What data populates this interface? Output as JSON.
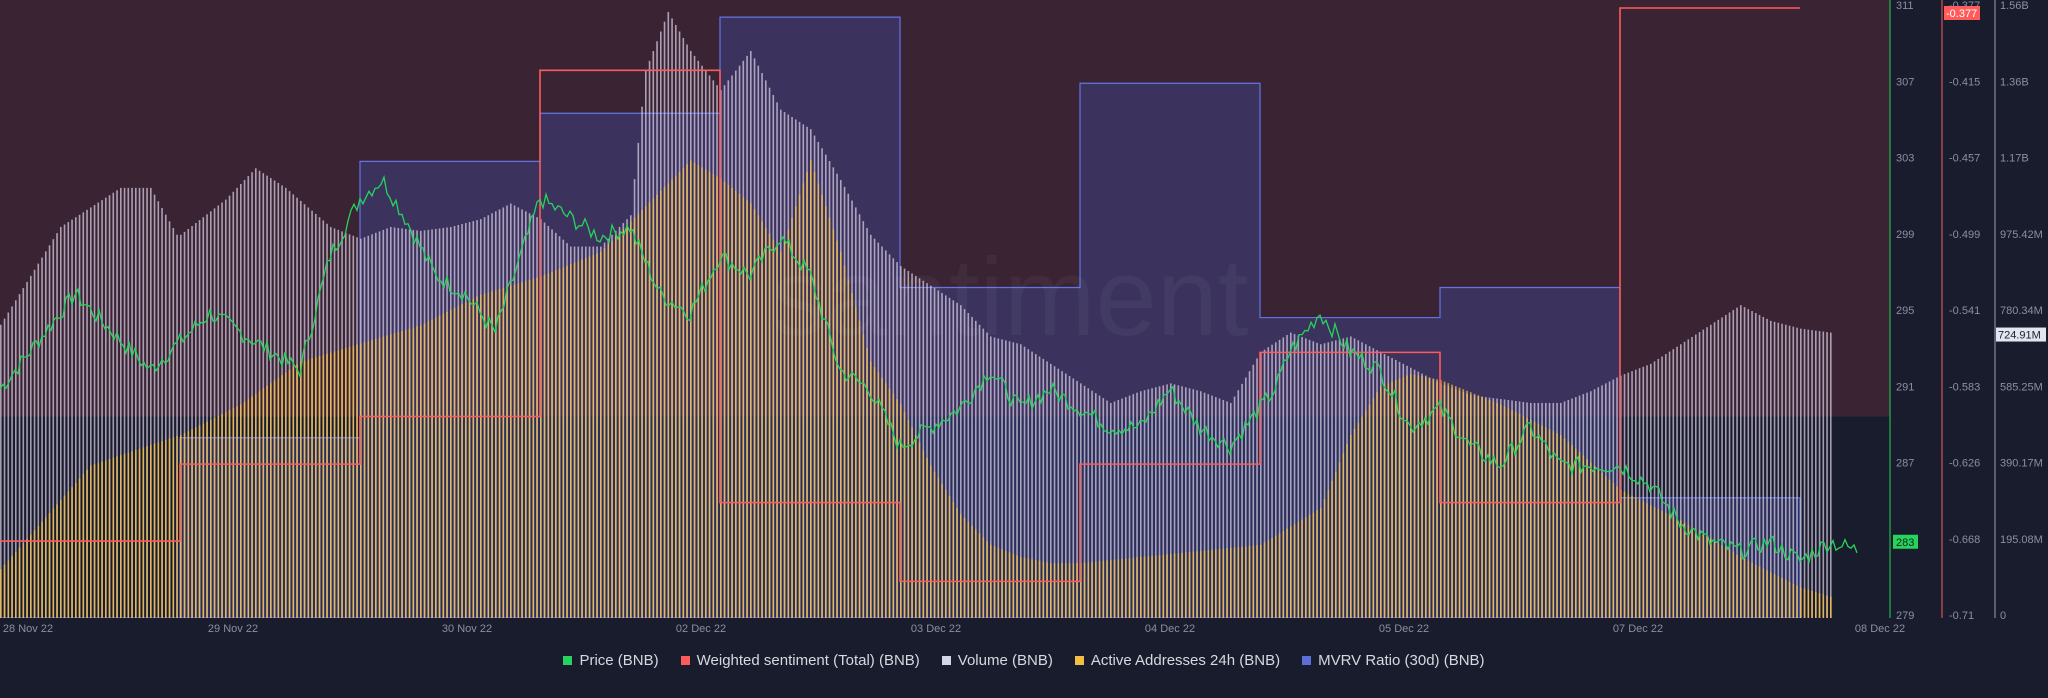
{
  "chart_data": {
    "type": "area",
    "watermark": "santiment",
    "x_dates": [
      "28 Nov 22",
      "29 Nov 22",
      "30 Nov 22",
      "02 Dec 22",
      "03 Dec 22",
      "04 Dec 22",
      "05 Dec 22",
      "07 Dec 22",
      "08 Dec 22"
    ],
    "series": [
      {
        "name": "Price (BNB)",
        "color": "#26d35c",
        "axis": "price"
      },
      {
        "name": "Weighted sentiment (Total) (BNB)",
        "color": "#ff5b5b",
        "axis": "sentiment"
      },
      {
        "name": "Volume (BNB)",
        "color": "#d3d6e6",
        "axis": "volume"
      },
      {
        "name": "Active Addresses 24h (BNB)",
        "color": "#f2be45",
        "axis": "none"
      },
      {
        "name": "MVRV Ratio (30d) (BNB)",
        "color": "#5b6fd6",
        "axis": "none"
      }
    ],
    "axes": {
      "price": {
        "ticks": [
          "311",
          "307",
          "303",
          "299",
          "295",
          "291",
          "287",
          "283",
          "279"
        ],
        "ylim": [
          279,
          311
        ],
        "current": "283"
      },
      "sentiment": {
        "ticks": [
          "-0.377",
          "-0.415",
          "-0.457",
          "-0.499",
          "-0.541",
          "-0.583",
          "-0.626",
          "-0.668",
          "-0.71"
        ],
        "ylim": [
          -0.71,
          -0.377
        ],
        "current": "-0.377"
      },
      "volume": {
        "ticks": [
          "1.56B",
          "1.36B",
          "1.17B",
          "975.42M",
          "780.34M",
          "585.25M",
          "390.17M",
          "195.08M",
          "0"
        ],
        "ylim": [
          0,
          1560000000
        ],
        "current": "724.91M"
      }
    },
    "price_points": [
      [
        0,
        291
      ],
      [
        5,
        296
      ],
      [
        10,
        292
      ],
      [
        14,
        295
      ],
      [
        18,
        293
      ],
      [
        20,
        292
      ],
      [
        22,
        298
      ],
      [
        24,
        301
      ],
      [
        25.5,
        302
      ],
      [
        27,
        300
      ],
      [
        29,
        297
      ],
      [
        31,
        296
      ],
      [
        33,
        294
      ],
      [
        36,
        301
      ],
      [
        38,
        300
      ],
      [
        40,
        299
      ],
      [
        42,
        299.5
      ],
      [
        44,
        296
      ],
      [
        46,
        295
      ],
      [
        48,
        298
      ],
      [
        50,
        297
      ],
      [
        52,
        299
      ],
      [
        54,
        297
      ],
      [
        56,
        292
      ],
      [
        58,
        291
      ],
      [
        60,
        288
      ],
      [
        62,
        289
      ],
      [
        64,
        290
      ],
      [
        66,
        292
      ],
      [
        68,
        290
      ],
      [
        70,
        291
      ],
      [
        72,
        290
      ],
      [
        74,
        289
      ],
      [
        76,
        289
      ],
      [
        78,
        291
      ],
      [
        80,
        289
      ],
      [
        82,
        288
      ],
      [
        84,
        290
      ],
      [
        85,
        291
      ],
      [
        86,
        293
      ],
      [
        88,
        295
      ],
      [
        90,
        293
      ],
      [
        92,
        292
      ],
      [
        94,
        289
      ],
      [
        96,
        290
      ],
      [
        98,
        288
      ],
      [
        100,
        287
      ],
      [
        102,
        289
      ],
      [
        104,
        287
      ],
      [
        106,
        287
      ],
      [
        108,
        287
      ],
      [
        110,
        286
      ],
      [
        112,
        284
      ],
      [
        114,
        283
      ],
      [
        116,
        282.5
      ],
      [
        118,
        283
      ],
      [
        120,
        282
      ],
      [
        122,
        283
      ],
      [
        124,
        282.5
      ]
    ],
    "sentiment_steps": [
      [
        0,
        -0.668
      ],
      [
        12,
        -0.668
      ],
      [
        12,
        -0.626
      ],
      [
        24,
        -0.626
      ],
      [
        24,
        -0.6
      ],
      [
        36,
        -0.6
      ],
      [
        36,
        -0.411
      ],
      [
        48,
        -0.411
      ],
      [
        48,
        -0.647
      ],
      [
        60,
        -0.647
      ],
      [
        60,
        -0.69
      ],
      [
        72,
        -0.69
      ],
      [
        72,
        -0.626
      ],
      [
        84,
        -0.626
      ],
      [
        84,
        -0.565
      ],
      [
        96,
        -0.565
      ],
      [
        96,
        -0.647
      ],
      [
        108,
        -0.647
      ],
      [
        108,
        -0.377
      ],
      [
        120,
        -0.377
      ]
    ],
    "volume_points": [
      [
        0,
        0.75
      ],
      [
        4,
        1.0
      ],
      [
        8,
        1.1
      ],
      [
        10,
        1.1
      ],
      [
        11.9,
        0.97
      ],
      [
        12,
        0.98
      ],
      [
        15,
        1.07
      ],
      [
        17,
        1.15
      ],
      [
        19,
        1.1
      ],
      [
        22,
        1.0
      ],
      [
        24,
        0.97
      ],
      [
        26,
        1.0
      ],
      [
        28,
        0.99
      ],
      [
        30,
        1.0
      ],
      [
        32,
        1.02
      ],
      [
        34,
        1.06
      ],
      [
        36,
        1.02
      ],
      [
        38,
        0.95
      ],
      [
        40,
        0.95
      ],
      [
        42,
        1.03
      ],
      [
        43,
        1.4
      ],
      [
        44.5,
        1.55
      ],
      [
        46,
        1.45
      ],
      [
        48,
        1.35
      ],
      [
        50,
        1.45
      ],
      [
        52,
        1.3
      ],
      [
        54,
        1.25
      ],
      [
        56,
        1.12
      ],
      [
        58,
        0.98
      ],
      [
        60,
        0.9
      ],
      [
        62,
        0.85
      ],
      [
        64,
        0.8
      ],
      [
        66,
        0.72
      ],
      [
        68,
        0.7
      ],
      [
        70,
        0.65
      ],
      [
        72,
        0.6
      ],
      [
        74,
        0.55
      ],
      [
        76,
        0.58
      ],
      [
        78,
        0.6
      ],
      [
        80,
        0.58
      ],
      [
        82,
        0.55
      ],
      [
        84,
        0.68
      ],
      [
        86,
        0.73
      ],
      [
        88,
        0.7
      ],
      [
        90,
        0.72
      ],
      [
        92,
        0.68
      ],
      [
        94,
        0.64
      ],
      [
        96,
        0.6
      ],
      [
        98,
        0.57
      ],
      [
        100,
        0.56
      ],
      [
        102,
        0.55
      ],
      [
        104,
        0.55
      ],
      [
        106,
        0.58
      ],
      [
        108,
        0.62
      ],
      [
        110,
        0.65
      ],
      [
        112,
        0.7
      ],
      [
        114,
        0.75
      ],
      [
        116,
        0.8
      ],
      [
        118,
        0.76
      ],
      [
        120,
        0.74
      ],
      [
        124,
        0.72
      ]
    ],
    "active_points": [
      [
        0,
        0.08
      ],
      [
        6,
        0.25
      ],
      [
        11.9,
        0.3
      ],
      [
        12,
        0.3
      ],
      [
        16,
        0.35
      ],
      [
        20,
        0.42
      ],
      [
        24,
        0.45
      ],
      [
        28,
        0.48
      ],
      [
        32,
        0.53
      ],
      [
        36,
        0.56
      ],
      [
        40,
        0.6
      ],
      [
        44,
        0.7
      ],
      [
        46,
        0.75
      ],
      [
        48,
        0.72
      ],
      [
        50,
        0.68
      ],
      [
        52,
        0.6
      ],
      [
        54,
        0.75
      ],
      [
        56,
        0.6
      ],
      [
        58,
        0.42
      ],
      [
        60,
        0.35
      ],
      [
        62,
        0.25
      ],
      [
        64,
        0.17
      ],
      [
        66,
        0.12
      ],
      [
        68,
        0.1
      ],
      [
        70,
        0.09
      ],
      [
        72,
        0.09
      ],
      [
        76,
        0.1
      ],
      [
        80,
        0.11
      ],
      [
        84,
        0.12
      ],
      [
        88,
        0.18
      ],
      [
        90,
        0.3
      ],
      [
        92,
        0.38
      ],
      [
        94,
        0.4
      ],
      [
        96,
        0.39
      ],
      [
        98,
        0.37
      ],
      [
        100,
        0.35
      ],
      [
        104,
        0.3
      ],
      [
        108,
        0.21
      ],
      [
        112,
        0.16
      ],
      [
        116,
        0.1
      ],
      [
        120,
        0.05
      ],
      [
        124,
        0.02
      ]
    ],
    "mvrv_steps": [
      [
        0,
        0
      ],
      [
        12,
        0
      ],
      [
        12,
        0.3
      ],
      [
        24,
        0.3
      ],
      [
        24,
        0.76
      ],
      [
        36,
        0.76
      ],
      [
        36,
        0.84
      ],
      [
        48,
        0.84
      ],
      [
        48,
        1.0
      ],
      [
        60,
        1.0
      ],
      [
        60,
        0.55
      ],
      [
        72,
        0.55
      ],
      [
        72,
        0.89
      ],
      [
        84,
        0.89
      ],
      [
        84,
        0.5
      ],
      [
        96,
        0.5
      ],
      [
        96,
        0.55
      ],
      [
        108,
        0.55
      ],
      [
        108,
        0.2
      ],
      [
        120,
        0.2
      ]
    ]
  },
  "legend": {
    "price": "Price (BNB)",
    "sentiment": "Weighted sentiment (Total) (BNB)",
    "volume": "Volume (BNB)",
    "active": "Active Addresses 24h (BNB)",
    "mvrv": "MVRV Ratio (30d) (BNB)"
  },
  "colors": {
    "background": "#181c2c",
    "positive_zone": "#3a2433",
    "price_axis": "#26d35c",
    "sentiment_axis": "#ff5b5b"
  }
}
